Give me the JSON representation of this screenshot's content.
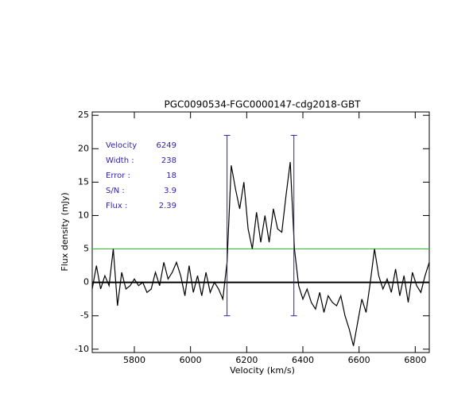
{
  "chart_data": {
    "type": "line",
    "title": "PGC0090534-FGC0000147-cdg2018-GBT",
    "xlabel": "Velocity (km/s)",
    "ylabel": "Flux density (mJy)",
    "x": [
      5650,
      5665,
      5680,
      5695,
      5710,
      5725,
      5740,
      5755,
      5770,
      5785,
      5800,
      5815,
      5830,
      5845,
      5860,
      5875,
      5890,
      5905,
      5920,
      5935,
      5950,
      5965,
      5980,
      5995,
      6010,
      6025,
      6040,
      6055,
      6070,
      6085,
      6100,
      6115,
      6130,
      6145,
      6160,
      6175,
      6190,
      6205,
      6220,
      6235,
      6250,
      6265,
      6280,
      6295,
      6310,
      6325,
      6340,
      6355,
      6370,
      6385,
      6400,
      6415,
      6430,
      6445,
      6460,
      6475,
      6490,
      6505,
      6520,
      6535,
      6550,
      6565,
      6580,
      6595,
      6610,
      6625,
      6640,
      6655,
      6670,
      6685,
      6700,
      6715,
      6730,
      6745,
      6760,
      6775,
      6790,
      6805,
      6820,
      6835,
      6850
    ],
    "series": [
      {
        "color": "#000000",
        "values": [
          -1,
          2.5,
          -1,
          1,
          -0.5,
          5,
          -3.5,
          1.5,
          -1,
          -0.5,
          0.5,
          -0.5,
          0,
          -1.5,
          -1,
          1.5,
          -0.5,
          3,
          0.5,
          1.5,
          3,
          1,
          -2,
          2.5,
          -1.5,
          1,
          -2,
          1.5,
          -1.5,
          0,
          -1,
          -2.5,
          3,
          17.5,
          14,
          11,
          15,
          8,
          5,
          10.5,
          6,
          10,
          6,
          11,
          8,
          7.5,
          13,
          18,
          5,
          -0.5,
          -2.5,
          -1,
          -3,
          -4,
          -1.5,
          -4.5,
          -2,
          -3,
          -3.5,
          -2,
          -5,
          -7,
          -9.5,
          -6,
          -2.5,
          -4.5,
          0,
          5,
          1,
          -1,
          0.5,
          -1.5,
          2,
          -2,
          1,
          -3,
          1.5,
          -0.5,
          -1.5,
          1,
          3
        ]
      }
    ],
    "xlim": [
      5650,
      6850
    ],
    "ylim": [
      -10.5,
      25.5
    ],
    "xticks": [
      5800,
      6000,
      6200,
      6400,
      6600,
      6800
    ],
    "yticks": [
      -10,
      -5,
      0,
      5,
      10,
      15,
      20,
      25
    ],
    "threshold": {
      "value": 5,
      "color": "#22cc22"
    },
    "zero_line": 0,
    "markers": {
      "x": [
        6130,
        6368
      ],
      "ylim": [
        -5,
        22
      ],
      "color": "#3322aa"
    },
    "annotations": [
      {
        "label": "Velocity",
        "value": 6249
      },
      {
        "label": "Width :",
        "value": 238
      },
      {
        "label": "Error :",
        "value": 18
      },
      {
        "label": "S/N :",
        "value": 3.9
      },
      {
        "label": "Flux :",
        "value": 2.39
      }
    ]
  }
}
